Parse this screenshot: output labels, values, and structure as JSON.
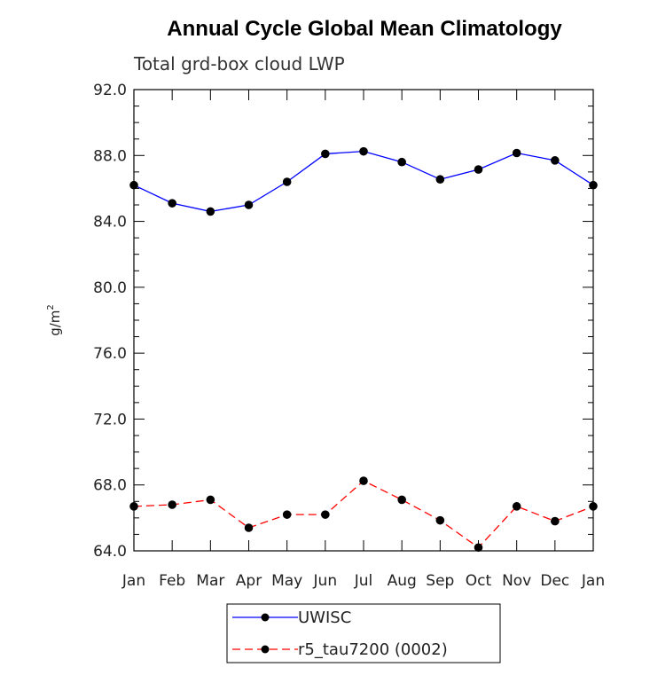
{
  "chart_data": {
    "type": "line",
    "title": "Annual Cycle Global Mean Climatology",
    "subtitle": "Total grd-box cloud LWP",
    "ylabel": "g/m",
    "ylabel_superscript": "2",
    "xlabel": "",
    "categories": [
      "Jan",
      "Feb",
      "Mar",
      "Apr",
      "May",
      "Jun",
      "Jul",
      "Aug",
      "Sep",
      "Oct",
      "Nov",
      "Dec",
      "Jan"
    ],
    "ylim": [
      64,
      92
    ],
    "yticks": [
      64,
      68,
      72,
      76,
      80,
      84,
      88,
      92
    ],
    "ytick_labels": [
      "64.0",
      "68.0",
      "72.0",
      "76.0",
      "80.0",
      "84.0",
      "88.0",
      "92.0"
    ],
    "series": [
      {
        "name": "UWISC",
        "color": "#0000ff",
        "dash": "solid",
        "values": [
          86.2,
          85.1,
          84.6,
          85.0,
          86.4,
          88.1,
          88.25,
          87.6,
          86.55,
          87.15,
          88.15,
          87.7,
          86.2
        ]
      },
      {
        "name": "r5_tau7200 (0002)",
        "color": "#ff0000",
        "dash": "dashed",
        "values": [
          66.7,
          66.8,
          67.1,
          65.4,
          66.2,
          66.2,
          68.25,
          67.1,
          65.85,
          64.2,
          66.7,
          65.8,
          66.7
        ]
      }
    ]
  }
}
